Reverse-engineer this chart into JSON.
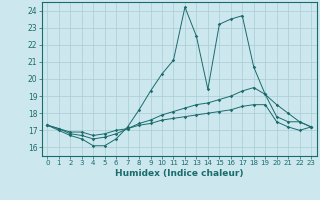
{
  "xlabel": "Humidex (Indice chaleur)",
  "ylabel": "",
  "background_color": "#cce8ee",
  "grid_color": "#aaccd4",
  "line_color": "#1a6b6b",
  "xlim": [
    -0.5,
    23.5
  ],
  "ylim": [
    15.5,
    24.5
  ],
  "yticks": [
    16,
    17,
    18,
    19,
    20,
    21,
    22,
    23,
    24
  ],
  "xticks": [
    0,
    1,
    2,
    3,
    4,
    5,
    6,
    7,
    8,
    9,
    10,
    11,
    12,
    13,
    14,
    15,
    16,
    17,
    18,
    19,
    20,
    21,
    22,
    23
  ],
  "line1_x": [
    0,
    1,
    2,
    3,
    4,
    5,
    6,
    7,
    8,
    9,
    10,
    11,
    12,
    13,
    14,
    15,
    16,
    17,
    18,
    19,
    20,
    21,
    22,
    23
  ],
  "line1_y": [
    17.3,
    17.0,
    16.7,
    16.5,
    16.1,
    16.1,
    16.5,
    17.2,
    18.2,
    19.3,
    20.3,
    21.1,
    24.2,
    22.5,
    19.4,
    23.2,
    23.5,
    23.7,
    20.7,
    19.1,
    17.8,
    17.5,
    17.5,
    17.2
  ],
  "line2_x": [
    0,
    1,
    2,
    3,
    4,
    5,
    6,
    7,
    8,
    9,
    10,
    11,
    12,
    13,
    14,
    15,
    16,
    17,
    18,
    19,
    20,
    21,
    22,
    23
  ],
  "line2_y": [
    17.3,
    17.1,
    16.8,
    16.7,
    16.5,
    16.6,
    16.8,
    17.1,
    17.4,
    17.6,
    17.9,
    18.1,
    18.3,
    18.5,
    18.6,
    18.8,
    19.0,
    19.3,
    19.5,
    19.1,
    18.5,
    18.0,
    17.5,
    17.2
  ],
  "line3_x": [
    0,
    1,
    2,
    3,
    4,
    5,
    6,
    7,
    8,
    9,
    10,
    11,
    12,
    13,
    14,
    15,
    16,
    17,
    18,
    19,
    20,
    21,
    22,
    23
  ],
  "line3_y": [
    17.3,
    17.1,
    16.9,
    16.9,
    16.7,
    16.8,
    17.0,
    17.1,
    17.3,
    17.4,
    17.6,
    17.7,
    17.8,
    17.9,
    18.0,
    18.1,
    18.2,
    18.4,
    18.5,
    18.5,
    17.5,
    17.2,
    17.0,
    17.2
  ]
}
